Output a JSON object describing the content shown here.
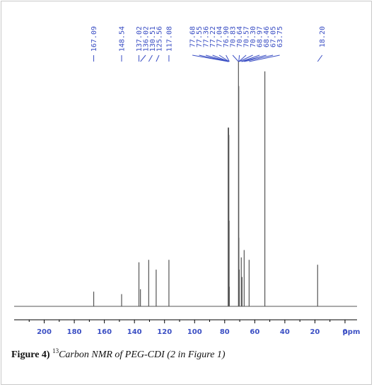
{
  "chart_data": {
    "type": "line",
    "title": "",
    "xlabel": "ppm",
    "ylabel": "",
    "xlim": [
      220,
      -8
    ],
    "x_reversed": true,
    "ylim": [
      0,
      1
    ],
    "grid": false,
    "x_ticks": [
      200,
      180,
      160,
      140,
      120,
      100,
      80,
      60,
      40,
      20,
      0
    ],
    "x_tick_labels": [
      "200",
      "180",
      "160",
      "140",
      "120",
      "100",
      "80",
      "60",
      "40",
      "20",
      "0"
    ],
    "x_unit_label": "ppm",
    "peaks": [
      {
        "ppm": 167.09,
        "label": "167.09",
        "height": 0.06
      },
      {
        "ppm": 148.54,
        "label": "148.54",
        "height": 0.05
      },
      {
        "ppm": 137.02,
        "label": "137.02",
        "height": 0.18
      },
      {
        "ppm": 136.02,
        "label": "136.02",
        "height": 0.07
      },
      {
        "ppm": 130.51,
        "label": "130.51",
        "height": 0.19
      },
      {
        "ppm": 125.56,
        "label": "125.56",
        "height": 0.15
      },
      {
        "ppm": 117.08,
        "label": "117.08",
        "height": 0.19
      },
      {
        "ppm": 77.68,
        "label": "77.68",
        "height": 0.73
      },
      {
        "ppm": 77.55,
        "label": "77.55",
        "height": 0.72
      },
      {
        "ppm": 77.36,
        "label": "77.36",
        "height": 0.73
      },
      {
        "ppm": 77.22,
        "label": "77.22",
        "height": 0.7
      },
      {
        "ppm": 77.04,
        "label": "77.04",
        "height": 0.35
      },
      {
        "ppm": 76.9,
        "label": "76.90",
        "height": 0.08
      },
      {
        "ppm": 70.83,
        "label": "70.83",
        "height": 1.0
      },
      {
        "ppm": 70.64,
        "label": "70.64",
        "height": 0.9
      },
      {
        "ppm": 70.57,
        "label": "70.57",
        "height": 0.28
      },
      {
        "ppm": 70.3,
        "label": "70.30",
        "height": 0.15
      },
      {
        "ppm": 68.97,
        "label": "68.97",
        "height": 0.2
      },
      {
        "ppm": 68.46,
        "label": "68.46",
        "height": 0.12
      },
      {
        "ppm": 67.05,
        "label": "67.05",
        "height": 0.23
      },
      {
        "ppm": 63.75,
        "label": "63.75",
        "height": 0.19
      },
      {
        "ppm": 53.3,
        "label": "",
        "height": 0.96
      },
      {
        "ppm": 18.2,
        "label": "18.20",
        "height": 0.17
      }
    ],
    "colors": {
      "spectrum": "#555555",
      "peak_labels": "#3b4fc4",
      "axis": "#000000",
      "tick_text": "#3b4fc4"
    }
  },
  "caption": {
    "label": "Figure 4)",
    "superscript": "13",
    "text": "Carbon NMR of PEG-CDI (2 in Figure 1)"
  }
}
